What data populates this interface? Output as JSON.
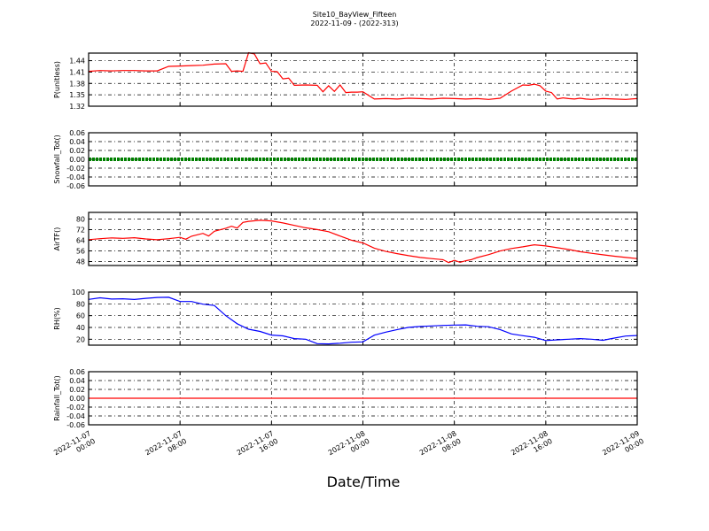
{
  "title": "Site10_BayView_Fifteen",
  "subtitle": "2022-11-09 - (2022-313)",
  "chart_data": {
    "type": "line",
    "xlabel": "Date/Time",
    "x_ticks": [
      {
        "line1": "2022-11-07",
        "line2": "00:00"
      },
      {
        "line1": "2022-11-07",
        "line2": "08:00"
      },
      {
        "line1": "2022-11-07",
        "line2": "16:00"
      },
      {
        "line1": "2022-11-08",
        "line2": "00:00"
      },
      {
        "line1": "2022-11-08",
        "line2": "08:00"
      },
      {
        "line1": "2022-11-08",
        "line2": "16:00"
      },
      {
        "line1": "2022-11-09",
        "line2": "00:00"
      }
    ],
    "xlim": [
      "2022-11-07 00:00",
      "2022-11-09 00:00"
    ],
    "grid": true,
    "panels": [
      {
        "ylabel": "P(unitless)",
        "ylim": [
          1.32,
          1.46
        ],
        "yticks": [
          "1.32",
          "1.35",
          "1.38",
          "1.41",
          "1.44"
        ],
        "color": "#ff0000",
        "marker": "line",
        "series": {
          "x": [
            0,
            1,
            2,
            3,
            4,
            5,
            6,
            7,
            8,
            9,
            10,
            11,
            12,
            12.5,
            13,
            13.5,
            14,
            14.5,
            15,
            15.5,
            16,
            16.5,
            17,
            17.5,
            18,
            19,
            20,
            20.5,
            21,
            21.5,
            22,
            22.5,
            23,
            23.5,
            24,
            25,
            26,
            27,
            28,
            29,
            30,
            31,
            32,
            33,
            34,
            35,
            36,
            37,
            38,
            38.5,
            39,
            39.5,
            40,
            40.5,
            41,
            41.5,
            42,
            42.5,
            43,
            43.5,
            44,
            45,
            46,
            47,
            48
          ],
          "y": [
            1.412,
            1.414,
            1.413,
            1.414,
            1.414,
            1.413,
            1.413,
            1.425,
            1.426,
            1.427,
            1.428,
            1.431,
            1.432,
            1.412,
            1.413,
            1.412,
            1.461,
            1.458,
            1.432,
            1.434,
            1.412,
            1.411,
            1.392,
            1.394,
            1.375,
            1.376,
            1.375,
            1.358,
            1.374,
            1.359,
            1.376,
            1.356,
            1.357,
            1.357,
            1.358,
            1.339,
            1.34,
            1.339,
            1.341,
            1.34,
            1.339,
            1.341,
            1.34,
            1.339,
            1.34,
            1.338,
            1.341,
            1.36,
            1.376,
            1.375,
            1.378,
            1.374,
            1.36,
            1.356,
            1.339,
            1.342,
            1.34,
            1.339,
            1.341,
            1.339,
            1.338,
            1.34,
            1.339,
            1.338,
            1.34
          ]
        }
      },
      {
        "ylabel": "Snowfall_Tot()",
        "ylim": [
          -0.06,
          0.06
        ],
        "yticks": [
          "-0.06",
          "-0.04",
          "-0.02",
          "0.00",
          "0.02",
          "0.04",
          "0.06"
        ],
        "color": "#008000",
        "marker": "thick",
        "series": {
          "x": [
            0,
            48
          ],
          "y": [
            0.0,
            0.0
          ]
        }
      },
      {
        "ylabel": "AirTF()",
        "ylim": [
          45,
          85
        ],
        "yticks": [
          "48",
          "56",
          "64",
          "72",
          "80"
        ],
        "color": "#ff0000",
        "marker": "line",
        "series": {
          "x": [
            0,
            1,
            2,
            3,
            4,
            5,
            6,
            7,
            8,
            8.5,
            9,
            10,
            10.5,
            11,
            12,
            12.5,
            13,
            13.5,
            14,
            15,
            16,
            17,
            18,
            19,
            20,
            21,
            22,
            23,
            24,
            25,
            26,
            27,
            28,
            29,
            30,
            31,
            31.5,
            32,
            32.5,
            33,
            33.5,
            34,
            35,
            36,
            37,
            38,
            39,
            40,
            41,
            42,
            43,
            44,
            45,
            46,
            47,
            48
          ],
          "y": [
            64.5,
            65.2,
            65.8,
            65.5,
            65.9,
            65.0,
            64.4,
            65.2,
            66.2,
            64.8,
            67.1,
            69.2,
            67.2,
            70.8,
            73.1,
            74.6,
            73.2,
            77.5,
            78.3,
            79.1,
            78.6,
            77.1,
            75.2,
            73.4,
            72.1,
            70.5,
            67.2,
            64.1,
            62.0,
            58.1,
            55.6,
            53.9,
            52.4,
            51.1,
            50.2,
            49.4,
            47.2,
            48.9,
            47.4,
            48.6,
            49.5,
            51.0,
            53.2,
            55.9,
            57.8,
            59.1,
            60.6,
            59.7,
            58.4,
            57.1,
            55.4,
            54.2,
            53.1,
            52.0,
            51.1,
            50.2
          ]
        }
      },
      {
        "ylabel": "RH(%)",
        "ylim": [
          10,
          100
        ],
        "yticks": [
          "20",
          "40",
          "60",
          "80",
          "100"
        ],
        "color": "#0000ff",
        "marker": "line",
        "series": {
          "x": [
            0,
            1,
            2,
            3,
            4,
            5,
            6,
            7,
            8,
            9,
            10,
            11,
            12,
            13,
            14,
            15,
            16,
            17,
            18,
            19,
            20,
            21,
            22,
            23,
            24,
            25,
            26,
            27,
            28,
            29,
            30,
            31,
            32,
            33,
            34,
            35,
            36,
            37,
            38,
            39,
            40,
            41,
            42,
            43,
            44,
            45,
            46,
            47,
            48
          ],
          "y": [
            87.5,
            90.2,
            88.1,
            88.6,
            87.4,
            89.3,
            90.8,
            91.2,
            84.0,
            83.9,
            79.5,
            77.2,
            60.0,
            46.3,
            37.0,
            33.2,
            27.1,
            25.8,
            21.1,
            20.0,
            12.5,
            12.1,
            13.3,
            15.0,
            15.6,
            27.0,
            32.0,
            36.4,
            40.1,
            41.6,
            42.5,
            43.4,
            44.0,
            44.3,
            42.0,
            41.2,
            36.4,
            29.0,
            26.0,
            23.4,
            17.8,
            19.0,
            20.0,
            21.1,
            20.0,
            18.3,
            22.0,
            25.5,
            26.4
          ]
        }
      },
      {
        "ylabel": "Rainfall_Tot()",
        "ylim": [
          -0.06,
          0.06
        ],
        "yticks": [
          "-0.06",
          "-0.04",
          "-0.02",
          "0.00",
          "0.02",
          "0.04",
          "0.06"
        ],
        "color": "#ff0000",
        "marker": "line",
        "series": {
          "x": [
            0,
            48
          ],
          "y": [
            0.0,
            0.0
          ]
        }
      }
    ]
  }
}
